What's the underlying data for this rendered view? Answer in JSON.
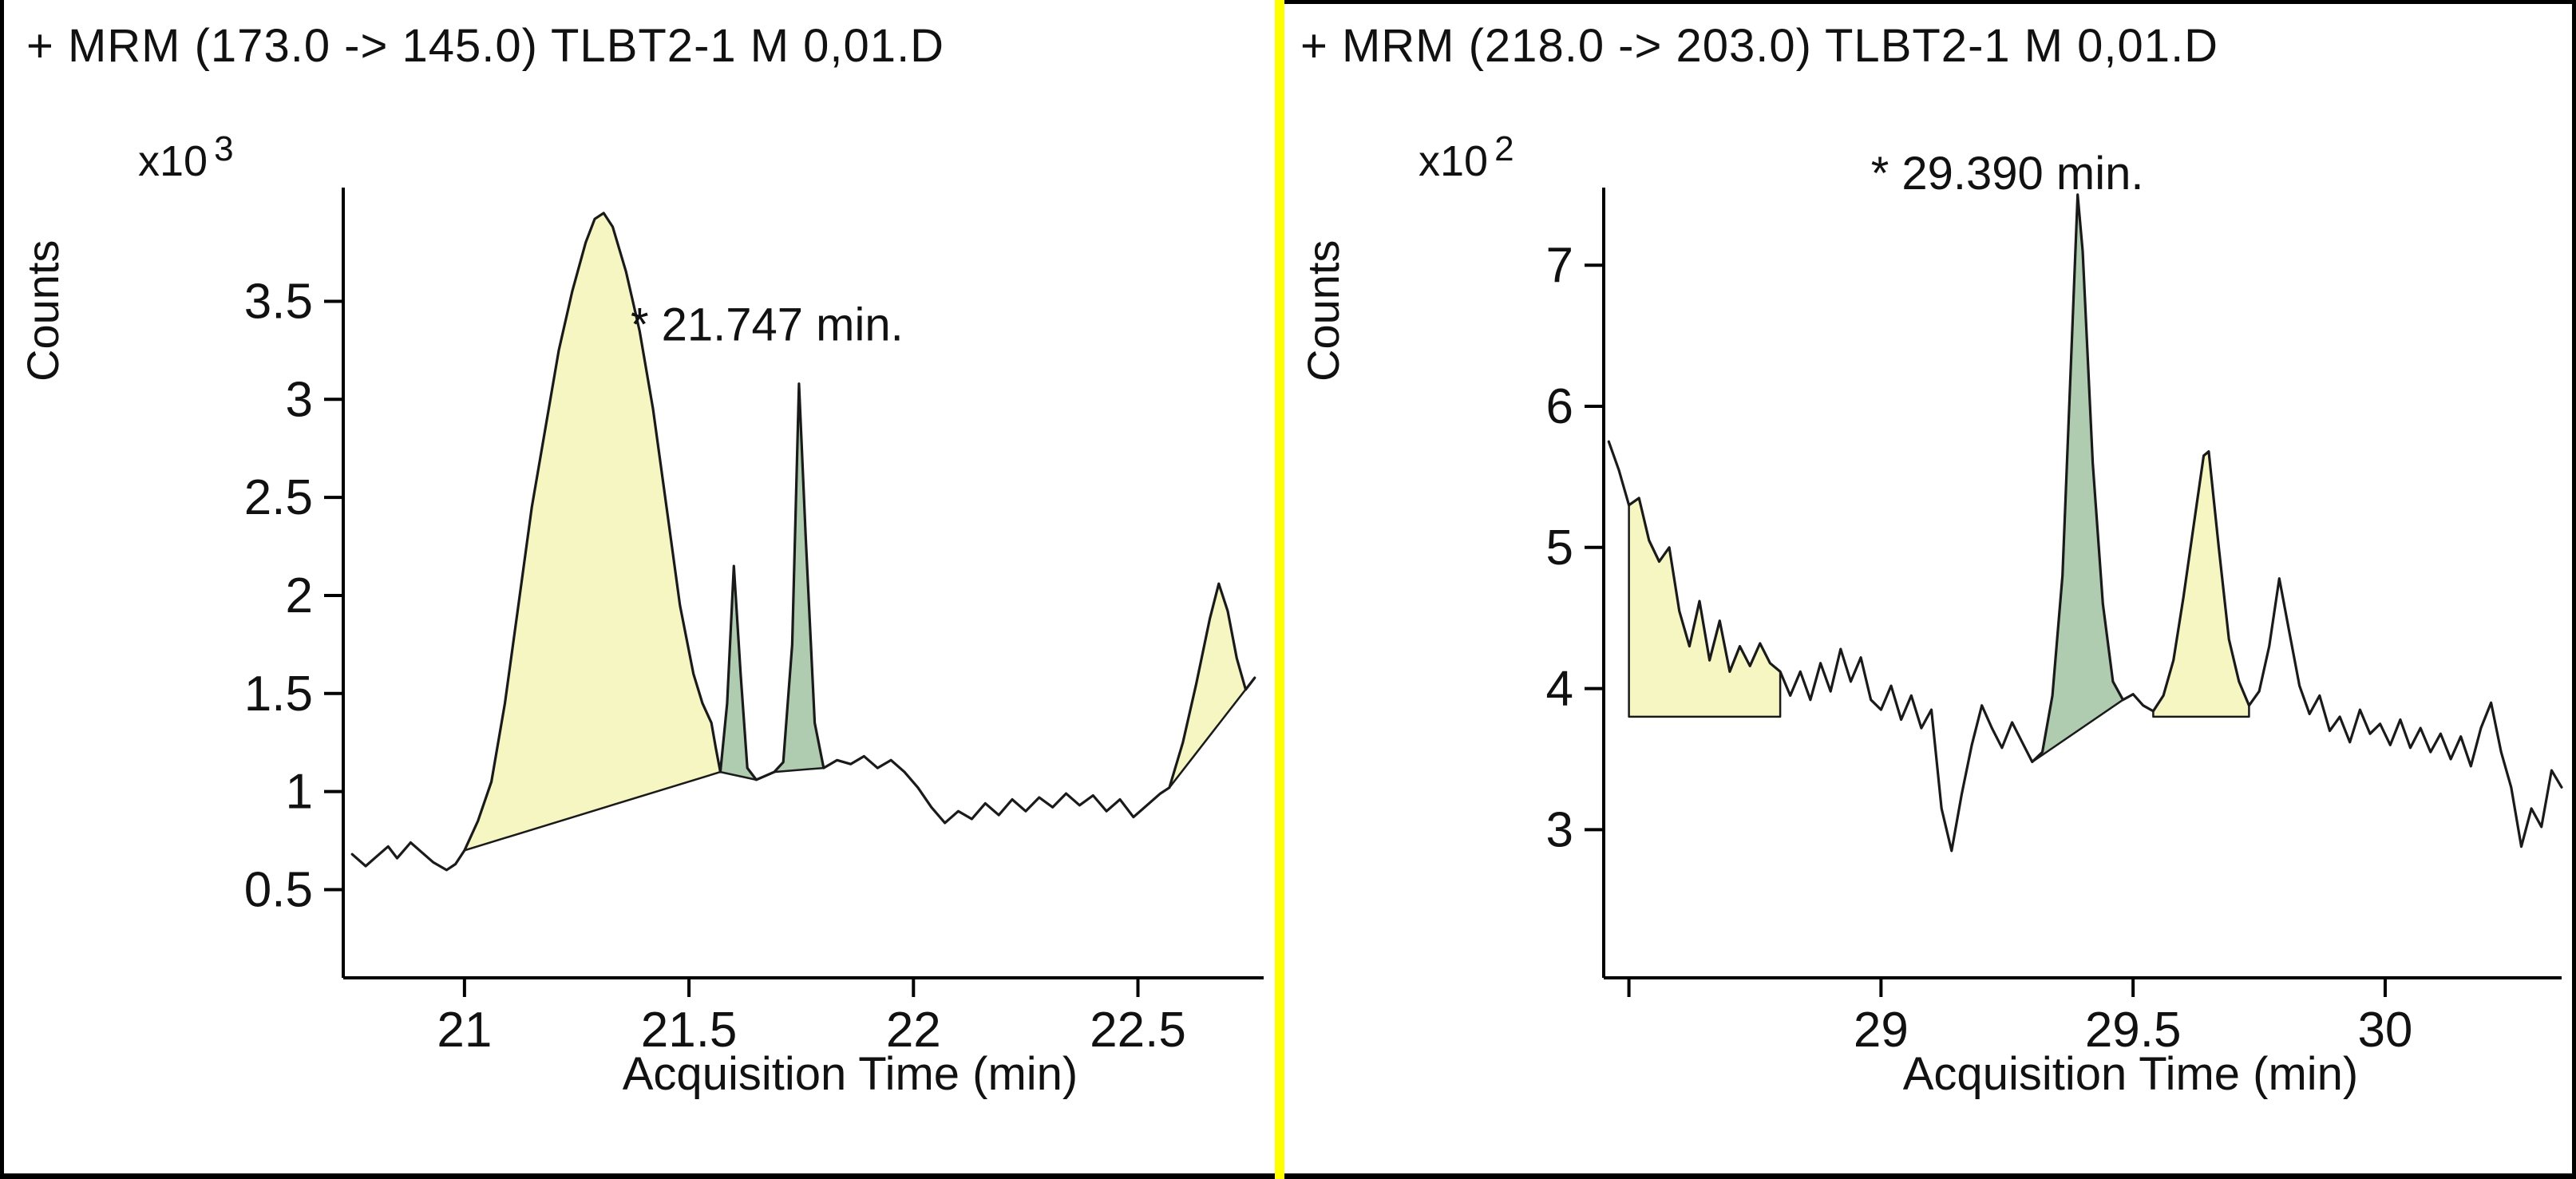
{
  "window": {
    "background": "#ffffff",
    "border_color": "#000000",
    "divider_color": "#ffff00"
  },
  "chart_data": [
    {
      "type": "line",
      "title": "+ MRM (173.0 -> 145.0) TLBT2-1 M 0,01.D",
      "xlabel": "Acquisition Time (min)",
      "ylabel": "Counts",
      "y_multiplier_base": "x10",
      "y_multiplier_exponent": "3",
      "xlim": [
        20.73,
        22.78
      ],
      "ylim": [
        0.05,
        4.08
      ],
      "grid": false,
      "line_color": "#1a1a1a",
      "xticks": [
        {
          "value": 21,
          "label": "21"
        },
        {
          "value": 21.5,
          "label": "21.5"
        },
        {
          "value": 22,
          "label": "22"
        },
        {
          "value": 22.5,
          "label": "22.5"
        }
      ],
      "yticks": [
        {
          "value": 0.5,
          "label": "0.5"
        },
        {
          "value": 1,
          "label": "1"
        },
        {
          "value": 1.5,
          "label": "1.5"
        },
        {
          "value": 2,
          "label": "2"
        },
        {
          "value": 2.5,
          "label": "2.5"
        },
        {
          "value": 3,
          "label": "3"
        },
        {
          "value": 3.5,
          "label": "3.5"
        }
      ],
      "annotation": {
        "text": "* 21.747 min.",
        "x": 21.37,
        "y": 3.3
      },
      "trace": [
        [
          20.75,
          0.68
        ],
        [
          20.78,
          0.62
        ],
        [
          20.8,
          0.66
        ],
        [
          20.83,
          0.72
        ],
        [
          20.85,
          0.66
        ],
        [
          20.88,
          0.74
        ],
        [
          20.9,
          0.7
        ],
        [
          20.93,
          0.64
        ],
        [
          20.96,
          0.6
        ],
        [
          20.98,
          0.63
        ],
        [
          21.0,
          0.7
        ],
        [
          21.03,
          0.85
        ],
        [
          21.06,
          1.05
        ],
        [
          21.09,
          1.45
        ],
        [
          21.12,
          1.95
        ],
        [
          21.15,
          2.45
        ],
        [
          21.18,
          2.85
        ],
        [
          21.21,
          3.25
        ],
        [
          21.24,
          3.55
        ],
        [
          21.27,
          3.8
        ],
        [
          21.29,
          3.92
        ],
        [
          21.31,
          3.95
        ],
        [
          21.33,
          3.88
        ],
        [
          21.36,
          3.65
        ],
        [
          21.39,
          3.35
        ],
        [
          21.42,
          2.95
        ],
        [
          21.45,
          2.45
        ],
        [
          21.48,
          1.95
        ],
        [
          21.51,
          1.6
        ],
        [
          21.53,
          1.45
        ],
        [
          21.55,
          1.35
        ],
        [
          21.56,
          1.22
        ],
        [
          21.57,
          1.1
        ],
        [
          21.585,
          1.45
        ],
        [
          21.6,
          2.15
        ],
        [
          21.615,
          1.6
        ],
        [
          21.63,
          1.12
        ],
        [
          21.65,
          1.06
        ],
        [
          21.67,
          1.08
        ],
        [
          21.69,
          1.1
        ],
        [
          21.71,
          1.15
        ],
        [
          21.73,
          1.75
        ],
        [
          21.745,
          3.08
        ],
        [
          21.76,
          2.3
        ],
        [
          21.78,
          1.35
        ],
        [
          21.8,
          1.12
        ],
        [
          21.83,
          1.16
        ],
        [
          21.86,
          1.14
        ],
        [
          21.89,
          1.18
        ],
        [
          21.92,
          1.12
        ],
        [
          21.95,
          1.16
        ],
        [
          21.98,
          1.1
        ],
        [
          22.01,
          1.02
        ],
        [
          22.04,
          0.92
        ],
        [
          22.07,
          0.84
        ],
        [
          22.1,
          0.9
        ],
        [
          22.13,
          0.86
        ],
        [
          22.16,
          0.94
        ],
        [
          22.19,
          0.88
        ],
        [
          22.22,
          0.96
        ],
        [
          22.25,
          0.9
        ],
        [
          22.28,
          0.97
        ],
        [
          22.31,
          0.92
        ],
        [
          22.34,
          0.99
        ],
        [
          22.37,
          0.93
        ],
        [
          22.4,
          0.98
        ],
        [
          22.43,
          0.9
        ],
        [
          22.46,
          0.96
        ],
        [
          22.49,
          0.87
        ],
        [
          22.52,
          0.93
        ],
        [
          22.55,
          0.99
        ],
        [
          22.57,
          1.02
        ],
        [
          22.6,
          1.25
        ],
        [
          22.63,
          1.55
        ],
        [
          22.66,
          1.88
        ],
        [
          22.68,
          2.06
        ],
        [
          22.7,
          1.92
        ],
        [
          22.72,
          1.68
        ],
        [
          22.74,
          1.52
        ],
        [
          22.76,
          1.58
        ]
      ],
      "fills": [
        {
          "color": "#f6f6c3",
          "from": 21.0,
          "to": 21.57,
          "close": []
        },
        {
          "color": "#b0ccb0",
          "from": 21.57,
          "to": 21.65,
          "close": []
        },
        {
          "color": "#b0ccb0",
          "from": 21.69,
          "to": 21.8,
          "close": []
        },
        {
          "color": "#f6f6c3",
          "from": 22.57,
          "to": 22.76,
          "close": []
        }
      ]
    },
    {
      "type": "line",
      "title": "+ MRM (218.0 -> 203.0) TLBT2-1 M 0,01.D",
      "xlabel": "Acquisition Time (min)",
      "ylabel": "Counts",
      "y_multiplier_base": "x10",
      "y_multiplier_exponent": "2",
      "xlim": [
        28.45,
        30.35
      ],
      "ylim": [
        1.95,
        7.55
      ],
      "grid": false,
      "line_color": "#1a1a1a",
      "xticks": [
        {
          "value": 28.5,
          "label": ""
        },
        {
          "value": 29,
          "label": "29"
        },
        {
          "value": 29.5,
          "label": "29.5"
        },
        {
          "value": 30,
          "label": "30"
        }
      ],
      "yticks": [
        {
          "value": 3,
          "label": "3"
        },
        {
          "value": 4,
          "label": "4"
        },
        {
          "value": 5,
          "label": "5"
        },
        {
          "value": 6,
          "label": "6"
        },
        {
          "value": 7,
          "label": "7"
        }
      ],
      "annotation": {
        "text": "* 29.390 min.",
        "x": 28.98,
        "y": 7.54
      },
      "trace": [
        [
          28.46,
          5.75
        ],
        [
          28.48,
          5.55
        ],
        [
          28.5,
          5.3
        ],
        [
          28.52,
          5.35
        ],
        [
          28.54,
          5.05
        ],
        [
          28.56,
          4.9
        ],
        [
          28.58,
          5.0
        ],
        [
          28.6,
          4.55
        ],
        [
          28.62,
          4.3
        ],
        [
          28.64,
          4.62
        ],
        [
          28.66,
          4.2
        ],
        [
          28.68,
          4.48
        ],
        [
          28.7,
          4.12
        ],
        [
          28.72,
          4.3
        ],
        [
          28.74,
          4.16
        ],
        [
          28.76,
          4.32
        ],
        [
          28.78,
          4.18
        ],
        [
          28.8,
          4.12
        ],
        [
          28.82,
          3.95
        ],
        [
          28.84,
          4.12
        ],
        [
          28.86,
          3.92
        ],
        [
          28.88,
          4.18
        ],
        [
          28.9,
          3.98
        ],
        [
          28.92,
          4.28
        ],
        [
          28.94,
          4.05
        ],
        [
          28.96,
          4.22
        ],
        [
          28.98,
          3.92
        ],
        [
          29.0,
          3.85
        ],
        [
          29.02,
          4.02
        ],
        [
          29.04,
          3.78
        ],
        [
          29.06,
          3.95
        ],
        [
          29.08,
          3.72
        ],
        [
          29.1,
          3.85
        ],
        [
          29.12,
          3.15
        ],
        [
          29.14,
          2.85
        ],
        [
          29.16,
          3.25
        ],
        [
          29.18,
          3.6
        ],
        [
          29.2,
          3.88
        ],
        [
          29.22,
          3.72
        ],
        [
          29.24,
          3.58
        ],
        [
          29.26,
          3.76
        ],
        [
          29.28,
          3.62
        ],
        [
          29.3,
          3.48
        ],
        [
          29.32,
          3.55
        ],
        [
          29.34,
          3.95
        ],
        [
          29.36,
          4.8
        ],
        [
          29.38,
          6.6
        ],
        [
          29.39,
          7.5
        ],
        [
          29.4,
          7.1
        ],
        [
          29.42,
          5.6
        ],
        [
          29.44,
          4.6
        ],
        [
          29.46,
          4.05
        ],
        [
          29.48,
          3.92
        ],
        [
          29.5,
          3.96
        ],
        [
          29.52,
          3.88
        ],
        [
          29.54,
          3.84
        ],
        [
          29.56,
          3.95
        ],
        [
          29.58,
          4.2
        ],
        [
          29.6,
          4.65
        ],
        [
          29.62,
          5.15
        ],
        [
          29.64,
          5.65
        ],
        [
          29.65,
          5.68
        ],
        [
          29.67,
          5.0
        ],
        [
          29.69,
          4.35
        ],
        [
          29.71,
          4.05
        ],
        [
          29.73,
          3.88
        ],
        [
          29.75,
          3.98
        ],
        [
          29.77,
          4.3
        ],
        [
          29.79,
          4.78
        ],
        [
          29.81,
          4.4
        ],
        [
          29.83,
          4.02
        ],
        [
          29.85,
          3.82
        ],
        [
          29.87,
          3.95
        ],
        [
          29.89,
          3.7
        ],
        [
          29.91,
          3.8
        ],
        [
          29.93,
          3.62
        ],
        [
          29.95,
          3.85
        ],
        [
          29.97,
          3.68
        ],
        [
          29.99,
          3.75
        ],
        [
          30.01,
          3.6
        ],
        [
          30.03,
          3.78
        ],
        [
          30.05,
          3.58
        ],
        [
          30.07,
          3.72
        ],
        [
          30.09,
          3.55
        ],
        [
          30.11,
          3.68
        ],
        [
          30.13,
          3.5
        ],
        [
          30.15,
          3.66
        ],
        [
          30.17,
          3.45
        ],
        [
          30.19,
          3.72
        ],
        [
          30.21,
          3.9
        ],
        [
          30.23,
          3.55
        ],
        [
          30.25,
          3.3
        ],
        [
          30.27,
          2.88
        ],
        [
          30.29,
          3.15
        ],
        [
          30.31,
          3.02
        ],
        [
          30.33,
          3.42
        ],
        [
          30.35,
          3.3
        ]
      ],
      "fills": [
        {
          "color": "#f6f6c3",
          "from": 28.5,
          "to": 28.8,
          "close": [
            [
              28.8,
              3.8
            ],
            [
              28.5,
              3.8
            ]
          ]
        },
        {
          "color": "#b0ccb0",
          "from": 29.3,
          "to": 29.48,
          "close": []
        },
        {
          "color": "#f6f6c3",
          "from": 29.54,
          "to": 29.73,
          "close": [
            [
              29.73,
              3.8
            ],
            [
              29.54,
              3.8
            ]
          ]
        }
      ]
    }
  ]
}
